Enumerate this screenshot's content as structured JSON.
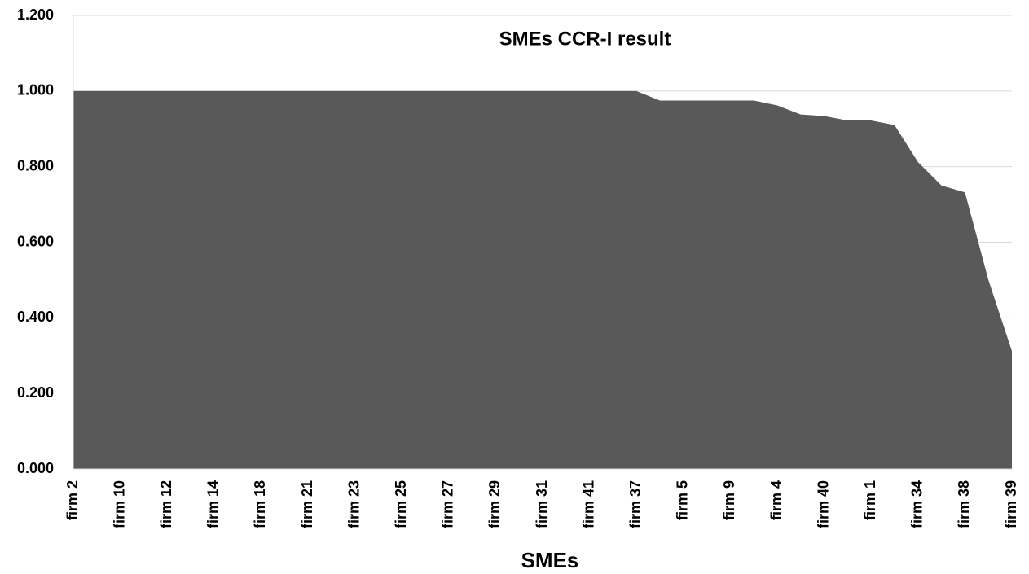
{
  "chart_data": {
    "type": "area",
    "title": "SMEs CCR-I result",
    "x_label": "SMEs",
    "categories": [
      "firm 2",
      null,
      "firm 10",
      null,
      "firm 12",
      null,
      "firm 14",
      null,
      "firm 18",
      null,
      "firm 21",
      null,
      "firm 23",
      null,
      "firm 25",
      null,
      "firm 27",
      null,
      "firm 29",
      null,
      "firm 31",
      null,
      "firm 41",
      null,
      "firm 37",
      null,
      "firm 5",
      null,
      "firm 9",
      null,
      "firm 4",
      null,
      "firm 40",
      null,
      "firm 1",
      null,
      "firm 34",
      null,
      "firm 38",
      null,
      "firm 39"
    ],
    "values": [
      1,
      1,
      1,
      1,
      1,
      1,
      1,
      1,
      1,
      1,
      1,
      1,
      1,
      1,
      1,
      1,
      1,
      1,
      1,
      1,
      1,
      1,
      1,
      1,
      1,
      0.975,
      0.975,
      0.975,
      0.975,
      0.975,
      0.962,
      0.938,
      0.934,
      0.922,
      0.922,
      0.91,
      0.812,
      0.75,
      0.732,
      0.5,
      0.312
    ],
    "color": "#595959",
    "ylim": [
      0,
      1.2
    ],
    "yticks": [
      {
        "value": 0,
        "label": "0.000"
      },
      {
        "value": 0.2,
        "label": "0.200"
      },
      {
        "value": 0.4,
        "label": "0.400"
      },
      {
        "value": 0.6,
        "label": "0.600"
      },
      {
        "value": 0.8,
        "label": "0.800"
      },
      {
        "value": 1,
        "label": "1.000"
      },
      {
        "value": 1.2,
        "label": "1.200"
      }
    ],
    "grid": true
  }
}
